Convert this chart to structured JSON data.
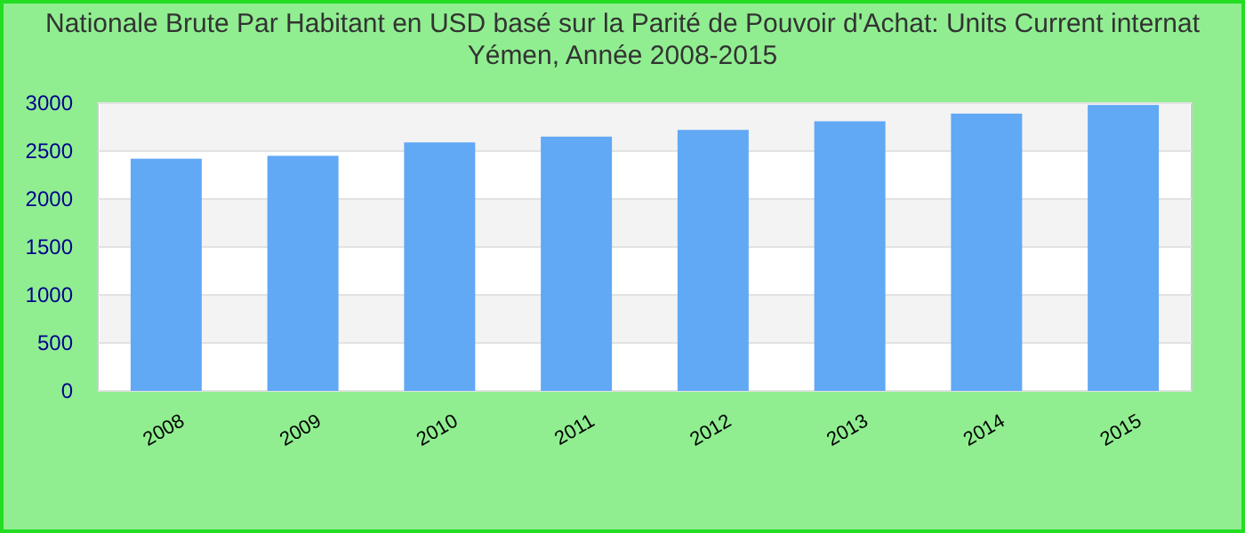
{
  "chart_data": {
    "type": "bar",
    "title": "Nationale Brute Par Habitant en USD basé sur la Parité de Pouvoir d'Achat: Units Current internat Yémen, Année 2008-2015",
    "categories": [
      "2008",
      "2009",
      "2010",
      "2011",
      "2012",
      "2013",
      "2014",
      "2015"
    ],
    "values": [
      2420,
      2450,
      2590,
      2650,
      2720,
      2810,
      2890,
      2980
    ],
    "color": "#61a8f5",
    "ylim": [
      0,
      3000
    ],
    "yticks": [
      0,
      500,
      1000,
      1500,
      2000,
      2500,
      3000
    ],
    "grid": true
  }
}
